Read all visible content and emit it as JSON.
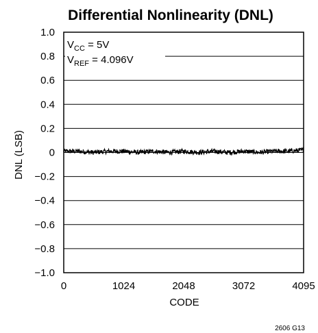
{
  "chart_data": {
    "type": "line",
    "title": "Differential Nonlinearity (DNL)",
    "xlabel": "CODE",
    "ylabel": "DNL (LSB)",
    "xlim": [
      0,
      4095
    ],
    "ylim": [
      -1.0,
      1.0
    ],
    "x_ticks": [
      0,
      1024,
      2048,
      3072,
      4095
    ],
    "x_tick_labels": [
      "0",
      "1024",
      "2048",
      "3072",
      "4095"
    ],
    "y_ticks": [
      1.0,
      0.8,
      0.6,
      0.4,
      0.2,
      0,
      -0.2,
      -0.4,
      -0.6,
      -0.8,
      -1.0
    ],
    "y_tick_labels": [
      "1.0",
      "0.8",
      "0.6",
      "0.4",
      "0.2",
      "0",
      "−0.2",
      "−0.4",
      "−0.6",
      "−0.8",
      "−1.0"
    ],
    "grid": "horizontal",
    "annotations": [
      {
        "main": "V",
        "sub": "CC",
        "rest": " = 5V"
      },
      {
        "main": "V",
        "sub": "REF",
        "rest": " = 4.096V"
      }
    ],
    "series": [
      {
        "x": [
          0,
          256,
          512,
          768,
          1024,
          1280,
          1536,
          1792,
          2048,
          2304,
          2560,
          2816,
          3072,
          3328,
          3584,
          3840,
          4095
        ],
        "values": [
          0.01,
          0.01,
          0.0,
          0.01,
          0.01,
          0.0,
          0.01,
          0.0,
          0.01,
          0.0,
          0.01,
          0.0,
          0.01,
          0.0,
          0.01,
          0.01,
          0.02
        ],
        "noise_amplitude": 0.02
      }
    ]
  },
  "figure_id": "2606 G13"
}
